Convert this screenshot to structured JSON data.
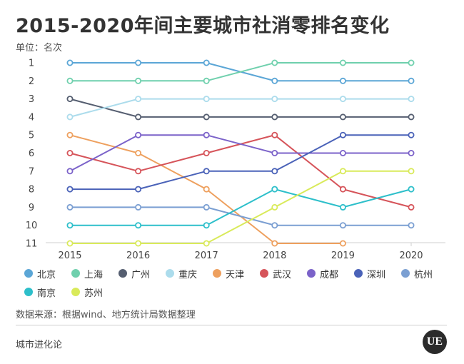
{
  "header": {
    "title": "2015-2020年间主要城市社消零排名变化",
    "unit": "单位：名次"
  },
  "chart_data": {
    "type": "line",
    "title": "2015-2020年间主要城市社消零排名变化",
    "ylabel": "单位：名次",
    "x": [
      "2015",
      "2016",
      "2017",
      "2018",
      "2019",
      "2020"
    ],
    "y_ticks": [
      1,
      2,
      3,
      4,
      5,
      6,
      7,
      8,
      9,
      10,
      11
    ],
    "ylim": [
      1,
      11
    ],
    "y_inverted": true,
    "grid": false,
    "legend_position": "bottom",
    "series": [
      {
        "name": "北京",
        "color": "#5ba6d6",
        "values": [
          1,
          1,
          1,
          2,
          2,
          2
        ]
      },
      {
        "name": "上海",
        "color": "#6fd0ad",
        "values": [
          2,
          2,
          2,
          1,
          1,
          1
        ]
      },
      {
        "name": "广州",
        "color": "#555e70",
        "values": [
          3,
          4,
          4,
          4,
          4,
          4
        ]
      },
      {
        "name": "重庆",
        "color": "#acdcec",
        "values": [
          4,
          3,
          3,
          3,
          3,
          3
        ]
      },
      {
        "name": "天津",
        "color": "#eea05e",
        "values": [
          5,
          6,
          8,
          11,
          11,
          null
        ]
      },
      {
        "name": "武汉",
        "color": "#d6545a",
        "values": [
          6,
          7,
          6,
          5,
          8,
          9
        ]
      },
      {
        "name": "成都",
        "color": "#7b62c9",
        "values": [
          7,
          5,
          5,
          6,
          6,
          6
        ]
      },
      {
        "name": "深圳",
        "color": "#4a62b8",
        "values": [
          8,
          8,
          7,
          7,
          5,
          5
        ]
      },
      {
        "name": "杭州",
        "color": "#7b9fd2",
        "values": [
          9,
          9,
          9,
          10,
          10,
          10
        ]
      },
      {
        "name": "南京",
        "color": "#2dbfca",
        "values": [
          10,
          10,
          10,
          8,
          9,
          8
        ]
      },
      {
        "name": "苏州",
        "color": "#d9ea5a",
        "values": [
          11,
          11,
          11,
          9,
          7,
          7
        ]
      }
    ]
  },
  "footer": {
    "source": "数据来源：根据wind、地方统计局数据整理",
    "brand": "城市进化论",
    "logo_text": "UE"
  }
}
